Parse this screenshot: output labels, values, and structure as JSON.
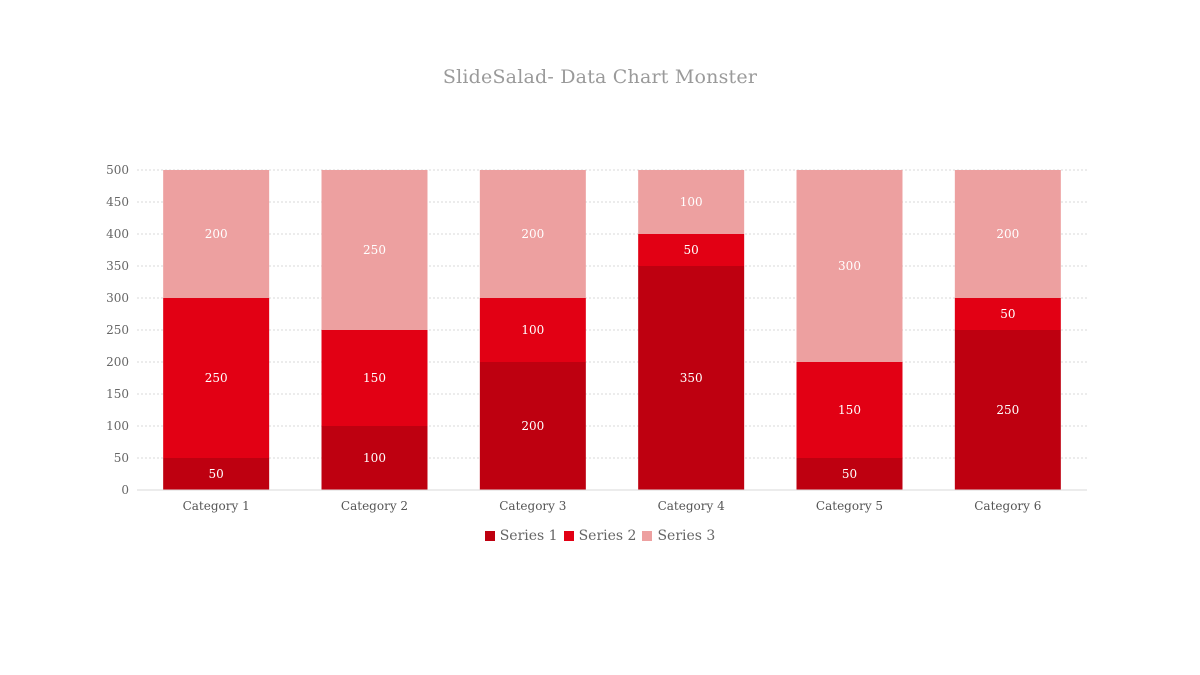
{
  "chart_data": {
    "type": "bar",
    "stacked": true,
    "title": "SlideSalad- Data Chart Monster",
    "categories": [
      "Category 1",
      "Category 2",
      "Category 3",
      "Category 4",
      "Category 5",
      "Category 6"
    ],
    "series": [
      {
        "name": "Series 1",
        "color": "#be0010",
        "values": [
          50,
          100,
          200,
          350,
          50,
          250
        ]
      },
      {
        "name": "Series 2",
        "color": "#e20014",
        "values": [
          250,
          150,
          100,
          50,
          150,
          50
        ]
      },
      {
        "name": "Series 3",
        "color": "#eda0a0",
        "values": [
          200,
          250,
          200,
          100,
          300,
          200
        ]
      }
    ],
    "ylim": [
      0,
      500
    ],
    "yticks": [
      0,
      50,
      100,
      150,
      200,
      250,
      300,
      350,
      400,
      450,
      500
    ],
    "xlabel": "",
    "ylabel": "",
    "grid": true,
    "legend_position": "bottom",
    "data_labels": true
  }
}
